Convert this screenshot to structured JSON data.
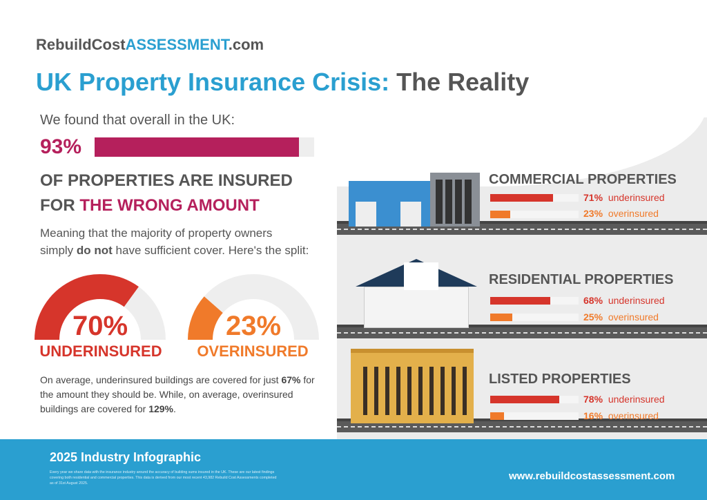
{
  "logo": {
    "part1": "RebuildCost",
    "part2": "ASSESSMENT",
    "part3": ".com"
  },
  "title": {
    "part1": "UK Property Insurance Crisis:",
    "part2": " The Reality"
  },
  "intro": "We found that overall in the UK:",
  "headline_stat": {
    "value": "93%",
    "fraction": 0.93
  },
  "headline": {
    "line1": "OF PROPERTIES ARE INSURED",
    "line2_prefix": "FOR ",
    "line2_highlight": "THE WRONG AMOUNT"
  },
  "meaning": {
    "line1": "Meaning that the majority of property owners",
    "line2_a": "simply ",
    "line2_bold": "do not",
    "line2_b": " have sufficient cover. Here's the split:"
  },
  "gauges": [
    {
      "value": "70%",
      "fraction": 0.7,
      "label": "UNDERINSURED",
      "color": "#d6352b"
    },
    {
      "value": "23%",
      "fraction": 0.23,
      "label": "OVERINSURED",
      "color": "#f07a2a"
    }
  ],
  "average": {
    "a": "On average, underinsured buildings are covered for just ",
    "b": "67%",
    "c": " for the amount they should be. While, on average, overinsured buildings are covered for ",
    "d": "129%",
    "e": "."
  },
  "categories": [
    {
      "title": "COMMERCIAL PROPERTIES",
      "under": {
        "value": "71%",
        "fraction": 0.71,
        "label": "underinsured"
      },
      "over": {
        "value": "23%",
        "fraction": 0.23,
        "label": "overinsured"
      }
    },
    {
      "title": "RESIDENTIAL PROPERTIES",
      "under": {
        "value": "68%",
        "fraction": 0.68,
        "label": "underinsured"
      },
      "over": {
        "value": "25%",
        "fraction": 0.25,
        "label": "overinsured"
      }
    },
    {
      "title": "LISTED PROPERTIES",
      "under": {
        "value": "78%",
        "fraction": 0.78,
        "label": "underinsured"
      },
      "over": {
        "value": "16%",
        "fraction": 0.16,
        "label": "overinsured"
      }
    }
  ],
  "colors": {
    "under": "#d6352b",
    "over": "#f07a2a",
    "pink": "#b5205c",
    "blue": "#2a9fd0"
  },
  "footer": {
    "title": "2025 Industry Infographic",
    "description": "Every year we share data with the insurance industry around the accuracy of building sums insured in the UK. These are our latest findings covering both residential and commercial properties. This data is derived from our most recent 43,982 Rebuild Cost Assessments completed as of 31st August 2025.",
    "url": "www.rebuildcostassessment.com"
  }
}
